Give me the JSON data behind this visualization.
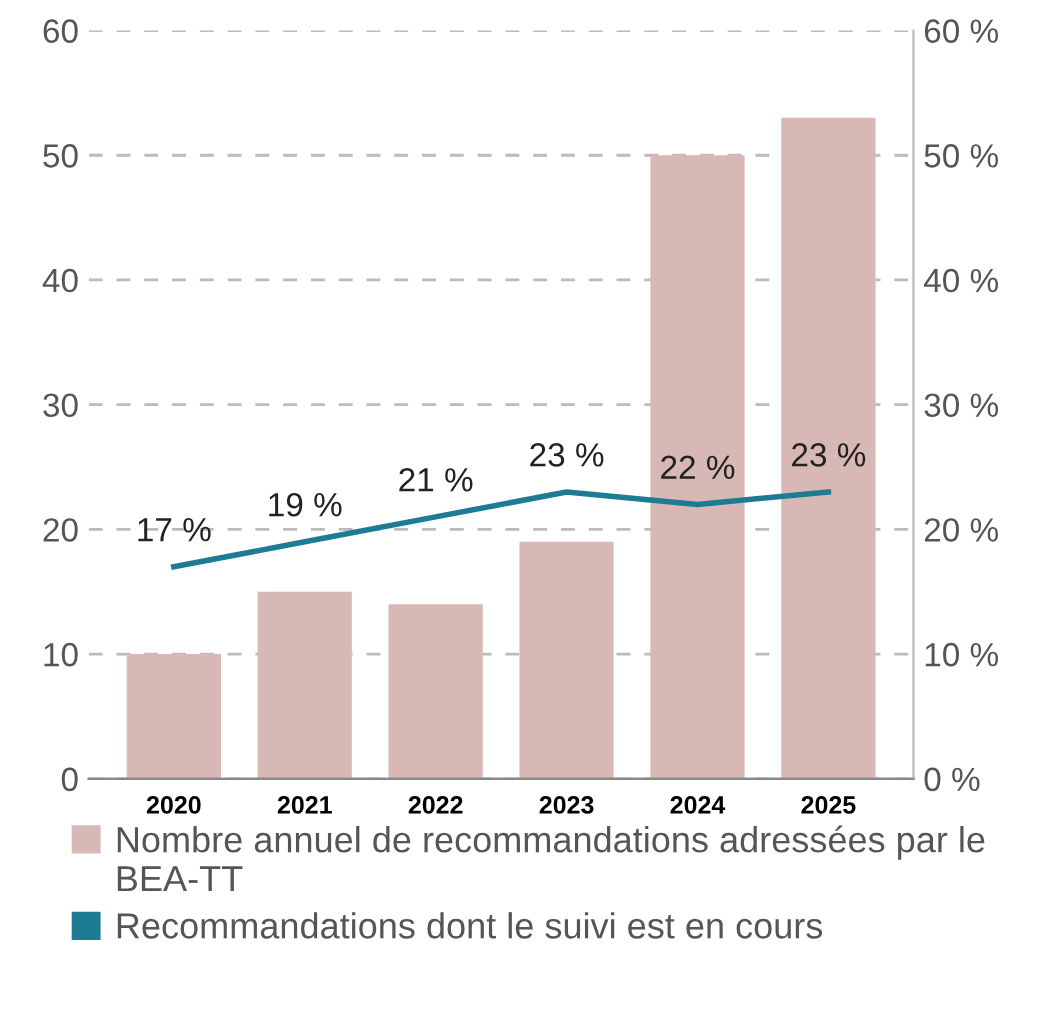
{
  "chart_data": {
    "type": "bar",
    "categories": [
      "2020",
      "2021",
      "2022",
      "2023",
      "2024",
      "2025"
    ],
    "series": [
      {
        "name": "Nombre annuel de recommandations adressées par le BEA-TT",
        "color": "#d8b8b4",
        "values": [
          10,
          15,
          14,
          19,
          50,
          53
        ]
      },
      {
        "name": "Recommandations dont le suivi est en cours",
        "type": "line",
        "axis": "y2",
        "color": "#1e7b94",
        "values": [
          17,
          19,
          21,
          23,
          22,
          23
        ],
        "value_labels": [
          "17 %",
          "19 %",
          "21 %",
          "23 %",
          "22 %",
          "23 %"
        ]
      }
    ],
    "ylim": [
      0,
      60
    ],
    "yticks": [
      0,
      10,
      20,
      30,
      40,
      50,
      60
    ],
    "y2lim": [
      0,
      60
    ],
    "y2ticks": [
      {
        "value": 0,
        "label": "0 %"
      },
      {
        "value": 10,
        "label": "10 %"
      },
      {
        "value": 20,
        "label": "20 %"
      },
      {
        "value": 30,
        "label": "30 %"
      },
      {
        "value": 40,
        "label": "40 %"
      },
      {
        "value": 50,
        "label": "50 %"
      },
      {
        "value": 60,
        "label": "60 %"
      }
    ],
    "grid": "y",
    "legend": "bottom",
    "marker": "none",
    "line_style": "solid"
  }
}
